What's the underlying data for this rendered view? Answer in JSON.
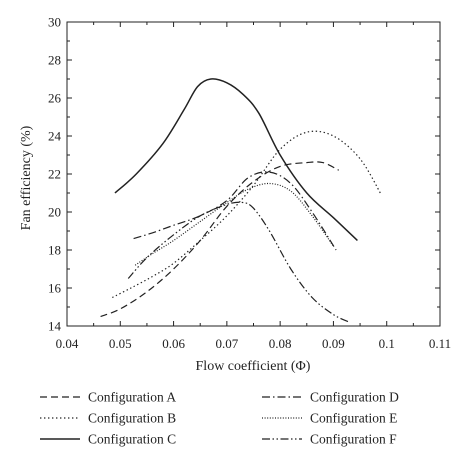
{
  "chart_data": {
    "type": "line",
    "title": "",
    "xlabel": "Flow coefficient (Φ)",
    "ylabel": "Fan efficiency (%)",
    "xlim": [
      0.04,
      0.11
    ],
    "ylim": [
      14,
      30
    ],
    "xticks": [
      "0.04",
      "0.05",
      "0.06",
      "0.07",
      "0.08",
      "0.09",
      "0.1",
      "0.11"
    ],
    "yticks": [
      "14",
      "16",
      "18",
      "20",
      "22",
      "24",
      "26",
      "28",
      "30"
    ],
    "grid": false,
    "legend_position": "bottom",
    "series": [
      {
        "name": "Configuration A",
        "style": "dashed",
        "x": [
          0.0463,
          0.05,
          0.055,
          0.06,
          0.065,
          0.07,
          0.075,
          0.08,
          0.085,
          0.088,
          0.091
        ],
        "y": [
          14.5,
          14.9,
          15.8,
          17.0,
          18.5,
          20.3,
          21.6,
          22.4,
          22.6,
          22.6,
          22.2
        ]
      },
      {
        "name": "Configuration B",
        "style": "dotted",
        "x": [
          0.0485,
          0.052,
          0.056,
          0.06,
          0.065,
          0.07,
          0.075,
          0.08,
          0.085,
          0.09,
          0.095,
          0.099
        ],
        "y": [
          15.5,
          16.0,
          16.6,
          17.3,
          18.5,
          19.8,
          21.4,
          23.3,
          24.2,
          24.0,
          22.8,
          20.9
        ]
      },
      {
        "name": "Configuration C",
        "style": "solid",
        "x": [
          0.049,
          0.053,
          0.058,
          0.062,
          0.0645,
          0.067,
          0.07,
          0.073,
          0.076,
          0.08,
          0.085,
          0.09,
          0.0945
        ],
        "y": [
          21.0,
          22.0,
          23.6,
          25.4,
          26.6,
          27.0,
          26.8,
          26.2,
          25.2,
          23.0,
          21.0,
          19.7,
          18.5
        ]
      },
      {
        "name": "Configuration D",
        "style": "dash-dot",
        "x": [
          0.0525,
          0.056,
          0.06,
          0.065,
          0.07,
          0.074,
          0.078,
          0.082,
          0.086,
          0.0905
        ],
        "y": [
          18.6,
          18.9,
          19.3,
          19.8,
          20.6,
          21.8,
          22.1,
          21.5,
          20.0,
          18.0
        ]
      },
      {
        "name": "Configuration E",
        "style": "dense-dotted",
        "x": [
          0.0528,
          0.056,
          0.06,
          0.065,
          0.07,
          0.074,
          0.078,
          0.082,
          0.086,
          0.09
        ],
        "y": [
          17.2,
          17.8,
          18.5,
          19.5,
          20.5,
          21.2,
          21.5,
          21.1,
          19.8,
          18.2
        ]
      },
      {
        "name": "Configuration F",
        "style": "dash-dot-dot",
        "x": [
          0.0515,
          0.055,
          0.06,
          0.065,
          0.07,
          0.073,
          0.075,
          0.078,
          0.082,
          0.086,
          0.09,
          0.093
        ],
        "y": [
          16.5,
          17.6,
          18.8,
          19.8,
          20.4,
          20.5,
          20.2,
          19.0,
          17.0,
          15.5,
          14.6,
          14.2
        ]
      }
    ]
  }
}
